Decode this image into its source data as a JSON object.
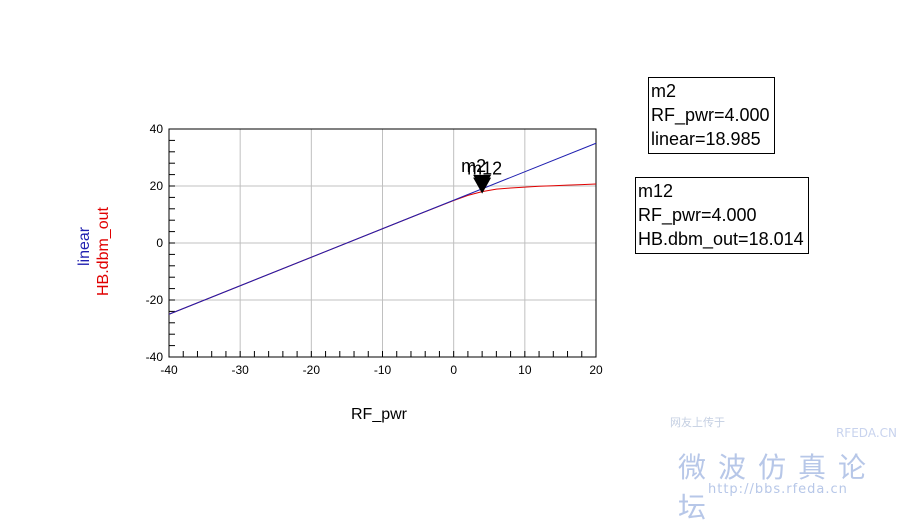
{
  "chart_data": {
    "type": "line",
    "xlabel": "RF_pwr",
    "ylabels": [
      "linear",
      "HB.dbm_out"
    ],
    "xlim": [
      -40,
      20
    ],
    "ylim": [
      -40,
      40
    ],
    "xticks": [
      -40,
      -30,
      -20,
      -10,
      0,
      10,
      20
    ],
    "yticks": [
      -40,
      -20,
      0,
      20,
      40
    ],
    "grid": true,
    "series": [
      {
        "name": "linear",
        "color": "#1f1fb0",
        "x": [
          -40,
          20
        ],
        "y": [
          -25,
          35
        ]
      },
      {
        "name": "HB.dbm_out",
        "color": "#e00000",
        "x": [
          -40,
          -30,
          -20,
          -10,
          -5,
          0,
          2,
          4,
          6,
          8,
          10,
          12,
          14,
          16,
          18,
          20
        ],
        "y": [
          -25,
          -15,
          -5,
          5,
          10,
          14.9,
          16.7,
          18.014,
          18.9,
          19.3,
          19.6,
          19.9,
          20.1,
          20.3,
          20.5,
          20.7
        ]
      }
    ],
    "markers": [
      {
        "name": "m2",
        "x": 4.0,
        "y": 18.985
      },
      {
        "name": "m12",
        "x": 4.0,
        "y": 18.014
      }
    ]
  },
  "marker_boxes": {
    "m2": {
      "title": "m2",
      "line1": "RF_pwr=4.000",
      "line2": "linear=18.985"
    },
    "m12": {
      "title": "m12",
      "line1": "RF_pwr=4.000",
      "line2": "HB.dbm_out=18.014"
    }
  },
  "watermark": {
    "small_text": "网友上传于",
    "brand": "RFEDA.CN",
    "chinese": "微波仿真论坛",
    "url": "http://bbs.rfeda.cn"
  }
}
